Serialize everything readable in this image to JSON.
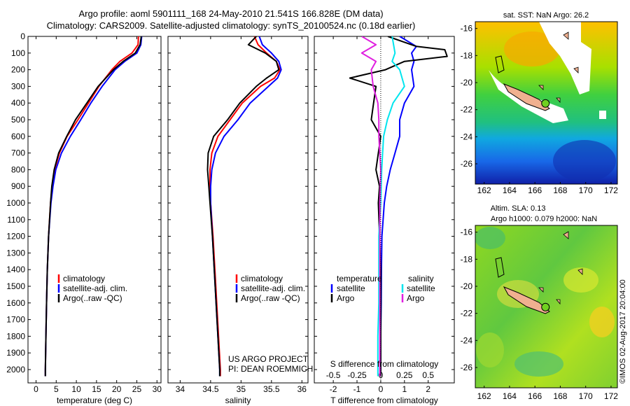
{
  "header": {
    "line1": "Argo profile: aoml 5901111_168 24-May-2010 21.541S 166.828E (DM data)",
    "line2": "Climatology: CARS2009. Satellite-adjusted climatology: synTS_20100524.nc (0.18d earlier)"
  },
  "colors": {
    "clim": "#ff0000",
    "sat": "#0000ff",
    "argo": "#000000",
    "sat_sal": "#00e5ee",
    "argo_sal": "#e020e0"
  },
  "chart_data": [
    {
      "type": "line",
      "xlabel": "temperature (deg C)",
      "xticks": [
        "0",
        "5",
        "10",
        "15",
        "20",
        "25",
        "30"
      ],
      "xlim": [
        -2,
        31
      ],
      "ylim": [
        0,
        2080
      ],
      "yticks": [
        "0",
        "100",
        "200",
        "300",
        "400",
        "500",
        "600",
        "700",
        "800",
        "900",
        "1000",
        "1100",
        "1200",
        "1300",
        "1400",
        "1500",
        "1600",
        "1700",
        "1800",
        "1900",
        "2000"
      ],
      "legend": [
        "climatology",
        "satellite-adj. clim.",
        "Argo(..raw -QC)"
      ],
      "series": [
        {
          "key": "clim",
          "y": [
            0,
            50,
            100,
            150,
            200,
            300,
            400,
            500,
            600,
            700,
            800,
            900,
            1000,
            1200,
            1400,
            1600,
            1800,
            2000,
            2040
          ],
          "x": [
            25.4,
            25.3,
            23.8,
            20.8,
            18.8,
            15.6,
            13.0,
            10.4,
            7.7,
            5.8,
            4.6,
            4.0,
            3.6,
            3.1,
            2.8,
            2.6,
            2.45,
            2.3,
            2.3
          ]
        },
        {
          "key": "sat",
          "y": [
            0,
            50,
            100,
            150,
            200,
            300,
            400,
            500,
            600,
            700,
            800,
            900,
            1000,
            1200,
            1400,
            1600,
            1800,
            2000,
            2040
          ],
          "x": [
            26.2,
            26.0,
            25.0,
            22.0,
            19.6,
            16.4,
            13.6,
            11.1,
            8.5,
            6.3,
            4.9,
            4.2,
            3.7,
            3.1,
            2.8,
            2.6,
            2.45,
            2.3,
            2.3
          ]
        },
        {
          "key": "argo",
          "y": [
            0,
            50,
            100,
            150,
            200,
            300,
            400,
            500,
            600,
            700,
            800,
            900,
            1000,
            1200,
            1400,
            1600,
            1800,
            2000,
            2040
          ],
          "x": [
            26.1,
            25.8,
            24.6,
            21.6,
            19.2,
            15.4,
            12.6,
            9.8,
            7.6,
            5.6,
            4.5,
            3.9,
            3.6,
            3.1,
            2.8,
            2.6,
            2.45,
            2.3,
            2.3
          ]
        }
      ]
    },
    {
      "type": "line",
      "xlabel": "salinity",
      "xticks": [
        "34",
        "34.5",
        "35",
        "35.5",
        "36"
      ],
      "xlim": [
        33.8,
        36.1
      ],
      "ylim": [
        0,
        2080
      ],
      "legend": [
        "climatology",
        "satellite-adj. clim.",
        "Argo(..raw -QC)"
      ],
      "annotation": [
        "US ARGO PROJECT",
        "PI: DEAN ROEMMICH"
      ],
      "series": [
        {
          "key": "clim",
          "y": [
            0,
            50,
            100,
            150,
            200,
            250,
            300,
            400,
            500,
            600,
            700,
            800,
            900,
            1000,
            1200,
            1400,
            1600,
            1800,
            2000,
            2040
          ],
          "x": [
            35.22,
            35.28,
            35.42,
            35.58,
            35.64,
            35.55,
            35.32,
            35.02,
            34.82,
            34.62,
            34.52,
            34.49,
            34.49,
            34.5,
            34.54,
            34.57,
            34.6,
            34.63,
            34.66,
            34.66
          ]
        },
        {
          "key": "sat",
          "y": [
            0,
            50,
            100,
            150,
            200,
            250,
            300,
            400,
            500,
            600,
            700,
            800,
            900,
            1000,
            1200,
            1400,
            1600,
            1800,
            2000,
            2040
          ],
          "x": [
            35.3,
            35.35,
            35.5,
            35.62,
            35.66,
            35.6,
            35.45,
            35.15,
            34.95,
            34.72,
            34.58,
            34.52,
            34.5,
            34.5,
            34.53,
            34.56,
            34.59,
            34.62,
            34.65,
            34.65
          ]
        },
        {
          "key": "argo",
          "y": [
            0,
            50,
            100,
            150,
            200,
            250,
            300,
            400,
            500,
            600,
            700,
            800,
            900,
            1000,
            1200,
            1400,
            1600,
            1800,
            2000,
            2040
          ],
          "x": [
            35.25,
            35.12,
            35.4,
            35.58,
            35.62,
            35.42,
            35.25,
            34.98,
            34.78,
            34.55,
            34.46,
            34.45,
            34.47,
            34.49,
            34.53,
            34.56,
            34.59,
            34.62,
            34.65,
            34.65
          ]
        }
      ]
    },
    {
      "type": "line",
      "xlabel": "T difference from climatology",
      "xlabel2": "S difference from climatology",
      "xticks": [
        "-2",
        "-1",
        "0",
        "1",
        "2"
      ],
      "xlim": [
        -2.8,
        3.1
      ],
      "sticks": [
        "-0.5",
        "-0.25",
        "0",
        "0.25",
        "0.5"
      ],
      "slim": [
        -0.7,
        0.775
      ],
      "ylim": [
        0,
        2080
      ],
      "legend_t": [
        "temperature",
        "satellite",
        "Argo"
      ],
      "legend_s": [
        "salinity",
        "satellite",
        "Argo"
      ],
      "series": [
        {
          "key": "sat",
          "y": [
            0,
            60,
            100,
            150,
            200,
            300,
            400,
            500,
            600,
            700,
            800,
            900,
            1000,
            1100,
            1200,
            1400,
            1600,
            1800,
            2000,
            2040
          ],
          "x": [
            0.8,
            1.5,
            1.3,
            1.4,
            1.3,
            1.4,
            1.0,
            0.8,
            0.8,
            0.6,
            0.4,
            0.25,
            0.15,
            0.1,
            0.05,
            0.03,
            0.02,
            0.0,
            0.0,
            0.0
          ]
        },
        {
          "key": "argo",
          "y": [
            0,
            60,
            80,
            120,
            150,
            200,
            250,
            300,
            400,
            500,
            600,
            700,
            800,
            900,
            1000,
            1200,
            1400,
            1600,
            1800,
            2000,
            2040
          ],
          "x": [
            0.3,
            1.5,
            2.7,
            2.8,
            1.0,
            0.2,
            -1.3,
            -0.2,
            -0.3,
            -0.4,
            0.0,
            -0.1,
            -0.2,
            -0.05,
            -0.1,
            -0.05,
            0.0,
            0.0,
            0.0,
            0.0,
            0.0
          ]
        },
        {
          "key": "sat_sal",
          "y": [
            0,
            100,
            150,
            200,
            300,
            400,
            500,
            600,
            700,
            800,
            1000,
            1200,
            1400,
            1600,
            1800,
            2000,
            2040
          ],
          "x": [
            0.12,
            0.15,
            0.12,
            0.2,
            0.25,
            0.13,
            0.07,
            0.03,
            0.02,
            0.01,
            0.0,
            -0.02,
            -0.02,
            -0.02,
            -0.03,
            -0.03,
            -0.03
          ]
        },
        {
          "key": "argo_sal",
          "y": [
            0,
            50,
            100,
            150,
            200,
            300,
            400,
            500,
            600,
            700,
            800,
            1000,
            1200,
            1400,
            1600,
            1800,
            2000,
            2040
          ],
          "x": [
            -0.2,
            -0.05,
            -0.2,
            -0.05,
            -0.1,
            -0.08,
            -0.03,
            -0.02,
            -0.02,
            -0.01,
            0.0,
            -0.01,
            -0.01,
            -0.01,
            -0.01,
            -0.01,
            -0.01,
            -0.01
          ]
        }
      ]
    },
    {
      "type": "heatmap",
      "title": "sat. SST: NaN Argo: 26.2",
      "xticks": [
        "162",
        "164",
        "166",
        "168",
        "170",
        "172"
      ],
      "yticks": [
        "-16",
        "-18",
        "-20",
        "-22",
        "-24",
        "-26"
      ],
      "xlim": [
        161.3,
        172.5
      ],
      "ylim": [
        -27.5,
        -15.5
      ],
      "marker": [
        166.83,
        -21.54
      ]
    },
    {
      "type": "heatmap",
      "title_line1": "Altim. SLA: 0.13",
      "title_line2": "Argo h1000: 0.079 h2000: NaN",
      "xticks": [
        "162",
        "164",
        "166",
        "168",
        "170",
        "172"
      ],
      "yticks": [
        "-16",
        "-18",
        "-20",
        "-22",
        "-24",
        "-26"
      ],
      "xlim": [
        161.3,
        172.5
      ],
      "ylim": [
        -27.5,
        -15.5
      ],
      "marker": [
        166.83,
        -21.54
      ]
    }
  ],
  "credit": "©IMOS 02-Aug-2017 20:04:00"
}
